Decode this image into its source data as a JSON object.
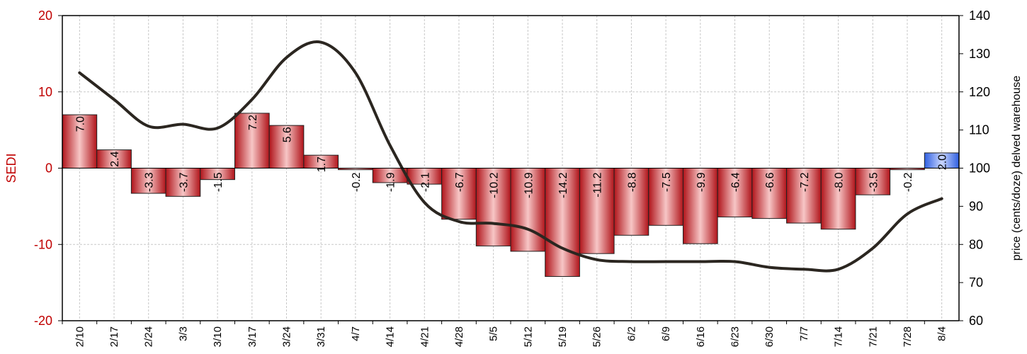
{
  "chart_data": {
    "type": "bar",
    "categories": [
      "2/10",
      "2/17",
      "2/24",
      "3/3",
      "3/10",
      "3/17",
      "3/24",
      "3/31",
      "4/7",
      "4/14",
      "4/21",
      "4/28",
      "5/5",
      "5/12",
      "5/19",
      "5/26",
      "6/2",
      "6/9",
      "6/16",
      "6/23",
      "6/30",
      "7/7",
      "7/14",
      "7/21",
      "7/28",
      "8/4"
    ],
    "series": [
      {
        "axis": "left",
        "type": "bar",
        "values": [
          7.0,
          2.4,
          -3.3,
          -3.7,
          -1.5,
          7.2,
          5.6,
          1.7,
          -0.2,
          -1.9,
          -2.1,
          -6.7,
          -10.2,
          -10.9,
          -14.2,
          -11.2,
          -8.8,
          -7.5,
          -9.9,
          -6.4,
          -6.6,
          -7.2,
          -8.0,
          -3.5,
          -0.2,
          2.0
        ],
        "data_labels": [
          "7.0",
          "2.4",
          "-3.3",
          "-3.7",
          "-1.5",
          "7.2",
          "5.6",
          "1.7",
          "-0.2",
          "-1.9",
          "-2.1",
          "-6.7",
          "-10.2",
          "-10.9",
          "-14.2",
          "-11.2",
          "-8.8",
          "-7.5",
          "-9.9",
          "-6.4",
          "-6.6",
          "-7.2",
          "-8.0",
          "-3.5",
          "-0.2",
          "2.0"
        ],
        "colors": {
          "negative_and_past": "#c0151b",
          "latest": "#3b6df0"
        }
      },
      {
        "axis": "right",
        "type": "line",
        "values": [
          125,
          118,
          111,
          111.5,
          110.5,
          118,
          129,
          133,
          125,
          106,
          91,
          86,
          85.5,
          84,
          79,
          76,
          75.5,
          75.5,
          75.5,
          75.5,
          74,
          73.5,
          73.5,
          79,
          88,
          92
        ],
        "color": "#2b2620"
      }
    ],
    "ylabel_left": "SEDI",
    "ylabel_right": "price (cents/doze) delved warehouse",
    "ylim_left": [
      -20,
      20
    ],
    "ylim_right": [
      60,
      140
    ],
    "yticks_left": [
      "20",
      "10",
      "0",
      "-10",
      "-20"
    ],
    "yticks_right": [
      "140",
      "130",
      "120",
      "110",
      "100",
      "90",
      "80",
      "70",
      "60"
    ],
    "grid": true
  }
}
